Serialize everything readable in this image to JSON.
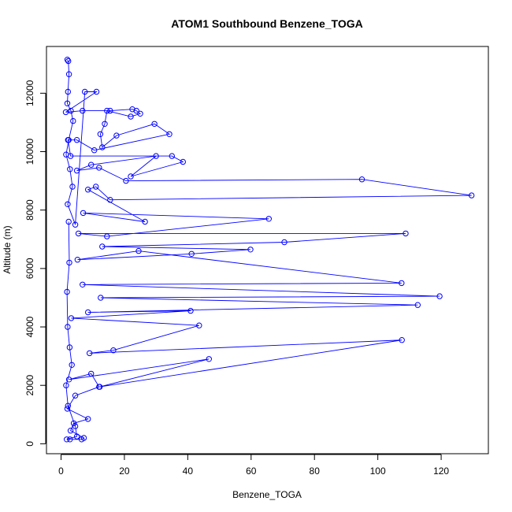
{
  "chart_data": {
    "type": "scatter",
    "title": "ATOM1 Southbound Benzene_TOGA",
    "xlabel": "Benzene_TOGA",
    "ylabel": "Altitude (m)",
    "xlim": [
      -4.6,
      134.9
    ],
    "ylim": [
      -340,
      13600
    ],
    "x_ticks": [
      0,
      20,
      40,
      60,
      80,
      100,
      120
    ],
    "x_tick_labels": [
      "0",
      "20",
      "40",
      "60",
      "80",
      "100",
      "120"
    ],
    "y_ticks": [
      0,
      2000,
      4000,
      6000,
      8000,
      10000,
      12000
    ],
    "y_tick_labels": [
      "0",
      "2000",
      "4000",
      "6000",
      "8000",
      "10000",
      "12000"
    ],
    "grid": false,
    "legend": "none",
    "marker": "open-circle",
    "connected": true,
    "series_color": "#0000ff",
    "series": [
      {
        "x": [
          2.0,
          2.3,
          2.5,
          2.2,
          2.0,
          3.1,
          3.8,
          2.4,
          1.6,
          2.8,
          3.6,
          2.1,
          4.5,
          7.5,
          11.2,
          1.5,
          6.8,
          15.5,
          22.5,
          23.8,
          25.0,
          22.0,
          14.5,
          13.8,
          12.4,
          13.0,
          17.5,
          29.5,
          34.2,
          10.5,
          5.0,
          2.2,
          3.0,
          35.0,
          38.5,
          22.0,
          30.0,
          9.5,
          5.0,
          12.0,
          20.5,
          95.0,
          129.6,
          15.5,
          11.0,
          8.5,
          26.5,
          7.0,
          65.6,
          14.5,
          5.5,
          108.8,
          70.5,
          13.0,
          59.8,
          41.2,
          5.2,
          24.5,
          107.5,
          6.8,
          119.5,
          12.5,
          112.6,
          8.5,
          40.9,
          3.2,
          43.6,
          16.5,
          9.0,
          107.6,
          12.2,
          46.7,
          2.5,
          9.5,
          12.0,
          4.5,
          2.0,
          8.5,
          4.0,
          3.0,
          7.2,
          6.5,
          2.8,
          1.8,
          5.0,
          4.5,
          2.2,
          1.6,
          3.4,
          2.7,
          2.1,
          1.9,
          2.6,
          2.4
        ],
        "y": [
          13150,
          13100,
          12650,
          12050,
          11650,
          11400,
          11050,
          10400,
          9900,
          9400,
          8800,
          8200,
          7500,
          12050,
          12050,
          11350,
          11400,
          11400,
          11450,
          11400,
          11300,
          11200,
          11400,
          10950,
          10600,
          10150,
          10550,
          10950,
          10600,
          10050,
          10400,
          10400,
          9850,
          9850,
          9650,
          9150,
          9850,
          9550,
          9350,
          9450,
          9000,
          9050,
          8500,
          8350,
          8800,
          8700,
          7600,
          7900,
          7700,
          7100,
          7200,
          7200,
          6900,
          6750,
          6650,
          6500,
          6300,
          6600,
          5500,
          5450,
          5050,
          5000,
          4750,
          4500,
          4550,
          4300,
          4050,
          3200,
          3100,
          3550,
          1950,
          2900,
          2200,
          2400,
          1950,
          1650,
          1200,
          850,
          700,
          450,
          200,
          150,
          150,
          150,
          250,
          600,
          1300,
          2000,
          2700,
          3300,
          4000,
          5200,
          6200,
          7600
        ]
      }
    ]
  }
}
